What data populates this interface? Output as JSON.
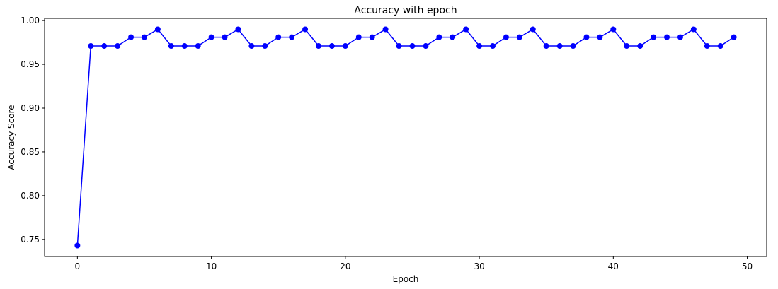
{
  "chart_data": {
    "type": "line",
    "title": "Accuracy with epoch",
    "xlabel": "Epoch",
    "ylabel": "Accuracy Score",
    "xlim": [
      -2.45,
      51.45
    ],
    "ylim": [
      0.7305,
      1.0025
    ],
    "xticks": [
      0,
      10,
      20,
      30,
      40,
      50
    ],
    "xtick_labels": [
      "0",
      "10",
      "20",
      "30",
      "40",
      "50"
    ],
    "yticks": [
      0.75,
      0.8,
      0.85,
      0.9,
      0.95,
      1.0
    ],
    "ytick_labels": [
      "0.75",
      "0.80",
      "0.85",
      "0.90",
      "0.95",
      "1.00"
    ],
    "grid": false,
    "line_color": "#0000ff",
    "marker": "circle",
    "x": [
      0,
      1,
      2,
      3,
      4,
      5,
      6,
      7,
      8,
      9,
      10,
      11,
      12,
      13,
      14,
      15,
      16,
      17,
      18,
      19,
      20,
      21,
      22,
      23,
      24,
      25,
      26,
      27,
      28,
      29,
      30,
      31,
      32,
      33,
      34,
      35,
      36,
      37,
      38,
      39,
      40,
      41,
      42,
      43,
      44,
      45,
      46,
      47,
      48,
      49
    ],
    "y": [
      0.743,
      0.971,
      0.971,
      0.971,
      0.981,
      0.981,
      0.99,
      0.971,
      0.971,
      0.971,
      0.981,
      0.981,
      0.99,
      0.971,
      0.971,
      0.981,
      0.981,
      0.99,
      0.971,
      0.971,
      0.971,
      0.981,
      0.981,
      0.99,
      0.971,
      0.971,
      0.971,
      0.981,
      0.981,
      0.99,
      0.971,
      0.971,
      0.981,
      0.981,
      0.99,
      0.971,
      0.971,
      0.971,
      0.981,
      0.981,
      0.99,
      0.971,
      0.971,
      0.981,
      0.981,
      0.981,
      0.99,
      0.971,
      0.971,
      0.981
    ]
  }
}
